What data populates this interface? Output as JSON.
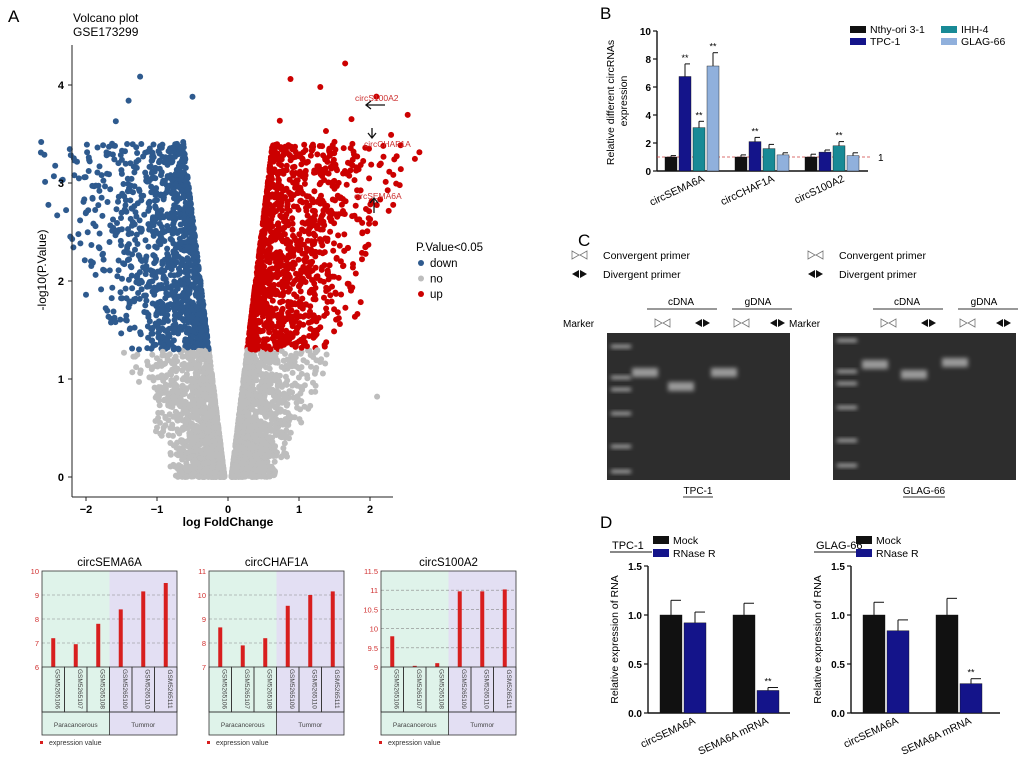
{
  "panels": {
    "a": "A",
    "b": "B",
    "c": "C",
    "d": "D"
  },
  "chart_data": [
    {
      "id": "volcano",
      "type": "scatter",
      "title": "Volcano plot",
      "subtitle": "GSE173299",
      "xlabel": "log FoldChange",
      "ylabel": "-log10(P.Value)",
      "xlim": [
        -2.2,
        2.25
      ],
      "ylim": [
        -0.2,
        4.3
      ],
      "xticks": [
        -2,
        -1,
        0,
        1,
        2
      ],
      "yticks": [
        0,
        1,
        2,
        3,
        4
      ],
      "grid": false,
      "threshold_neg_log10_p": 1.3,
      "legend": {
        "title": "P.Value<0.05",
        "placement": "right",
        "entries": [
          {
            "label": "down",
            "color": "#2e5a8e"
          },
          {
            "label": "no",
            "color": "#bdbdbd"
          },
          {
            "label": "up",
            "color": "#cc0000"
          }
        ]
      },
      "annotations": [
        {
          "label": "circS100A2",
          "x": 1.68,
          "y": 3.8
        },
        {
          "label": "circCHAF1A",
          "x": 1.68,
          "y": 3.52
        },
        {
          "label": "circSEMA6A",
          "x": 1.7,
          "y": 2.85
        }
      ]
    },
    {
      "id": "b-bar",
      "type": "bar",
      "ylabel": "Relative different circRNAs expression",
      "ylim": [
        0,
        10
      ],
      "yticks": [
        0,
        2,
        4,
        6,
        8,
        10
      ],
      "reference_line": {
        "value": 1,
        "label": "1",
        "color": "#d04040"
      },
      "categories": [
        "circSEMA6A",
        "circCHAF1A",
        "circS100A2"
      ],
      "legend": {
        "placement": "top-right"
      },
      "series": [
        {
          "name": "Nthy-ori 3-1",
          "color": "#111111",
          "values": [
            1.0,
            1.0,
            1.0
          ],
          "errors": [
            0.1,
            0.15,
            0.2
          ],
          "sig": [
            "",
            "",
            ""
          ]
        },
        {
          "name": "TPC-1",
          "color": "#14148a",
          "values": [
            6.75,
            2.1,
            1.35
          ],
          "errors": [
            0.9,
            0.3,
            0.15
          ],
          "sig": [
            "**",
            "**",
            ""
          ]
        },
        {
          "name": "IHH-4",
          "color": "#188a96",
          "values": [
            3.1,
            1.6,
            1.8
          ],
          "errors": [
            0.45,
            0.3,
            0.3
          ],
          "sig": [
            "**",
            "",
            "**"
          ]
        },
        {
          "name": "GLAG-66",
          "color": "#90b0dc",
          "values": [
            7.5,
            1.15,
            1.1
          ],
          "errors": [
            0.95,
            0.15,
            0.2
          ],
          "sig": [
            "**",
            "",
            ""
          ]
        }
      ]
    },
    {
      "id": "expr-circSEMA6A",
      "type": "bar",
      "title": "circSEMA6A",
      "ylim": [
        6,
        10
      ],
      "yticks": [
        6,
        7,
        8,
        9,
        10
      ],
      "categories": [
        "GSM5265106",
        "GSM5265107",
        "GSM5265108",
        "GSM5265109",
        "GSM5265110",
        "GSM5265111"
      ],
      "values": [
        7.2,
        6.95,
        7.8,
        8.4,
        9.15,
        9.5
      ],
      "groups": [
        "Paracancerous",
        "Tummor"
      ],
      "legend": "expression value"
    },
    {
      "id": "expr-circCHAF1A",
      "type": "bar",
      "title": "circCHAF1A",
      "ylim": [
        7,
        11
      ],
      "yticks": [
        7,
        8,
        9,
        10,
        11
      ],
      "categories": [
        "GSM5265106",
        "GSM5265107",
        "GSM5265108",
        "GSM5265109",
        "GSM5265110",
        "GSM5265111"
      ],
      "values": [
        8.65,
        7.9,
        8.2,
        9.55,
        10.0,
        10.15
      ],
      "groups": [
        "Paracancerous",
        "Tummor"
      ],
      "legend": "expression value"
    },
    {
      "id": "expr-circS100A2",
      "type": "bar",
      "title": "circS100A2",
      "ylim": [
        9,
        11.5
      ],
      "yticks": [
        9,
        9.5,
        10,
        10.5,
        11,
        11.5
      ],
      "categories": [
        "GSM5265106",
        "GSM5265107",
        "GSM5265108",
        "GSM5265109",
        "GSM5265110",
        "GSM5265111"
      ],
      "values": [
        9.8,
        9.03,
        9.1,
        10.97,
        10.97,
        11.02
      ],
      "groups": [
        "Paracancerous",
        "Tummor"
      ],
      "legend": "expression value"
    },
    {
      "id": "d-tpc1",
      "type": "bar",
      "title": "TPC-1",
      "ylabel": "Relative expression of  RNA",
      "ylim": [
        0,
        1.5
      ],
      "yticks": [
        "0.0",
        "0.5",
        "1.0",
        "1.5"
      ],
      "categories": [
        "circSEMA6A",
        "SEMA6A mRNA"
      ],
      "series": [
        {
          "name": "Mock",
          "color": "#111111",
          "values": [
            1.0,
            1.0
          ],
          "errors": [
            0.15,
            0.12
          ],
          "sig": [
            "",
            ""
          ]
        },
        {
          "name": "RNase R",
          "color": "#14148a",
          "values": [
            0.92,
            0.23
          ],
          "errors": [
            0.11,
            0.03
          ],
          "sig": [
            "",
            "**"
          ]
        }
      ]
    },
    {
      "id": "d-glag66",
      "type": "bar",
      "title": "GLAG-66",
      "ylabel": "Relative expression of  RNA",
      "ylim": [
        0,
        1.5
      ],
      "yticks": [
        "0.0",
        "0.5",
        "1.0",
        "1.5"
      ],
      "categories": [
        "circSEMA6A",
        "SEMA6A mRNA"
      ],
      "series": [
        {
          "name": "Mock",
          "color": "#111111",
          "values": [
            1.0,
            1.0
          ],
          "errors": [
            0.13,
            0.17
          ],
          "sig": [
            "",
            ""
          ]
        },
        {
          "name": "RNase R",
          "color": "#14148a",
          "values": [
            0.84,
            0.3
          ],
          "errors": [
            0.11,
            0.05
          ],
          "sig": [
            "",
            "**"
          ]
        }
      ]
    }
  ],
  "gels": {
    "legend": {
      "convergent": "Convergent primer",
      "divergent": "Divergent primer"
    },
    "marker_label": "Marker",
    "groups": [
      "cDNA",
      "gDNA"
    ],
    "panels": [
      {
        "cell_line": "TPC-1"
      },
      {
        "cell_line": "GLAG-66"
      }
    ]
  }
}
